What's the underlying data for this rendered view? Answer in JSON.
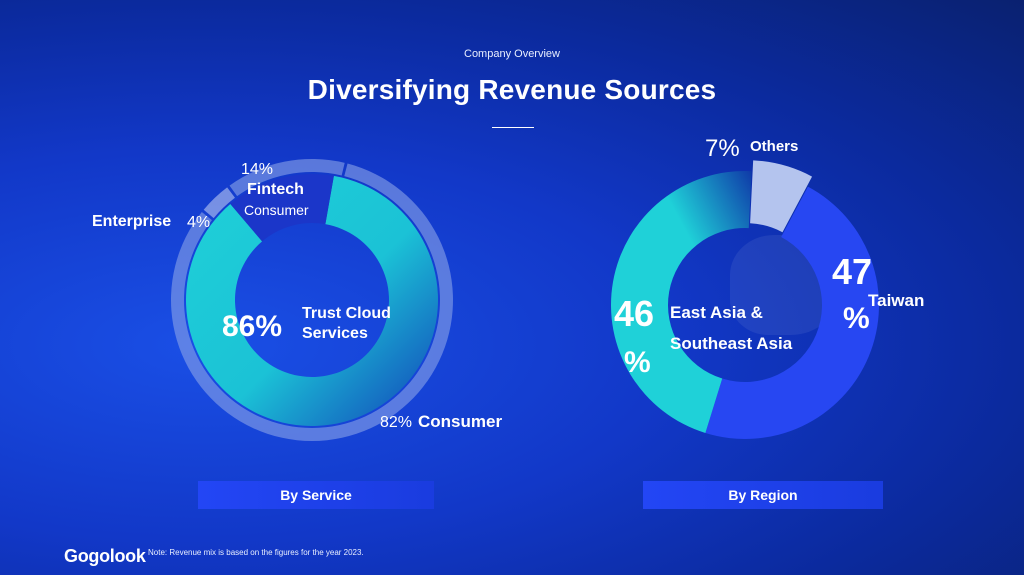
{
  "header": {
    "kicker": "Company Overview",
    "title": "Diversifying Revenue Sources"
  },
  "chart_data": [
    {
      "type": "pie",
      "variant": "nested-donut",
      "caption": "By Service",
      "rings": [
        {
          "name": "",
          "slices": [
            {
              "label": "Trust Cloud Services",
              "value": 86,
              "display": "86%",
              "color": "#1fd1d8"
            },
            {
              "label": "Fintech",
              "value": 14,
              "display": "14%",
              "color": "#1b36c9"
            }
          ]
        },
        {
          "name": "",
          "slices": [
            {
              "label": "Consumer",
              "value": 82,
              "display": "82%",
              "color": "#8aa3e8"
            },
            {
              "label": "Enterprise",
              "value": 4,
              "display": "4%",
              "color": "#b9c8f2"
            },
            {
              "label": "Consumer",
              "value": 14,
              "display": "",
              "color": "#8aa3e8"
            }
          ]
        }
      ]
    },
    {
      "type": "pie",
      "variant": "donut",
      "caption": "By Region",
      "slices": [
        {
          "label": "Taiwan",
          "value": 47,
          "display": "47%",
          "color": "#2747f2"
        },
        {
          "label": "East Asia & Southeast Asia",
          "value": 46,
          "display": "46%",
          "color": "#1fd1d8"
        },
        {
          "label": "Others",
          "value": 7,
          "display": "7%",
          "color": "#b4c4ee"
        }
      ]
    }
  ],
  "labels": {
    "service_pct_trust": "86%",
    "service_trust_line1": "Trust Cloud",
    "service_trust_line2": "Services",
    "service_pct_fintech": "14%",
    "service_fintech": "Fintech",
    "service_fintech_sub": "Consumer",
    "service_enterprise": "Enterprise",
    "service_pct_enterprise": "4%",
    "service_pct_consumer": "82%",
    "service_consumer": "Consumer",
    "region_pct_others": "7%",
    "region_others": "Others",
    "region_pct_taiwan_num": "47",
    "region_pct_taiwan_sign": "%",
    "region_taiwan": "Taiwan",
    "region_pct_asia_num": "46",
    "region_pct_asia_sign": "%",
    "region_asia_line1": "East Asia &",
    "region_asia_line2": "Southeast Asia"
  },
  "buttons": {
    "by_service": "By Service",
    "by_region": "By Region"
  },
  "footer": {
    "logo": "Gogolook",
    "note": "Note: Revenue mix is based on the figures for the year 2023."
  }
}
